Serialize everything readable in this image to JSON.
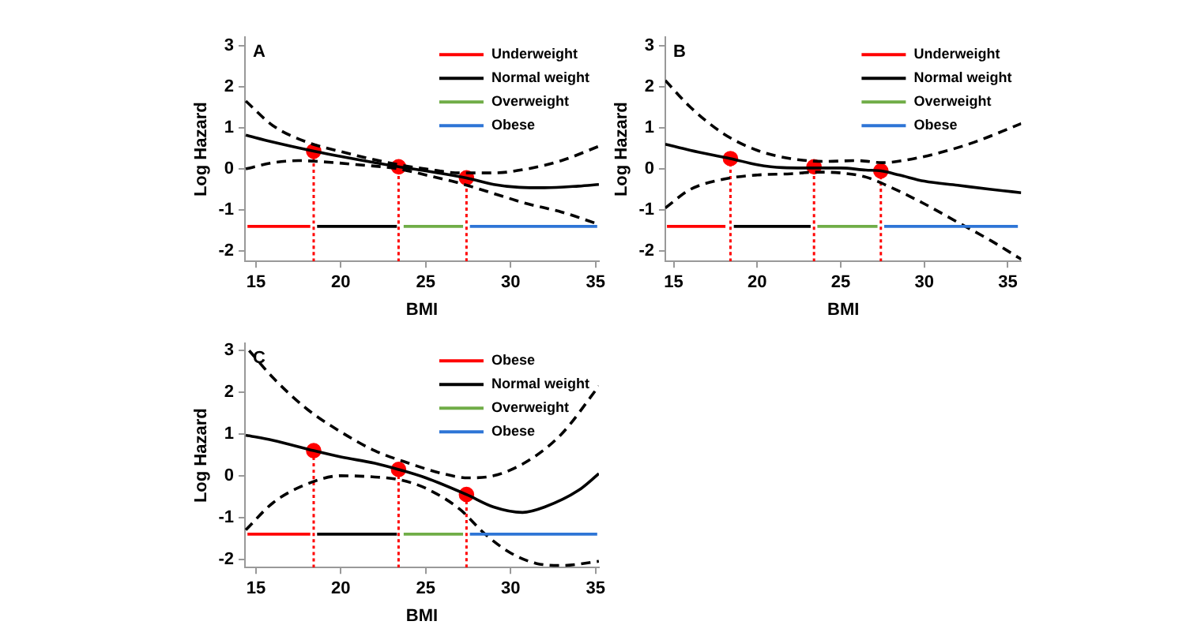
{
  "chart_data": [
    {
      "type": "line",
      "annotations": [
        "A"
      ],
      "xlabel": "BMI",
      "ylabel": "Log Hazard",
      "xlim": [
        14.35,
        35.2
      ],
      "ylim": [
        -2.25,
        3.2
      ],
      "xticks": [
        15,
        20,
        25,
        30,
        35
      ],
      "yticks": [
        -2,
        -1,
        0,
        1,
        2,
        3
      ],
      "grid": false,
      "legend": "top right",
      "series": [
        {
          "name": "Underweight",
          "color": "#ff0000",
          "x": [
            14.5,
            18.2
          ],
          "values": [
            -1.4,
            -1.4
          ]
        },
        {
          "name": "Normal weight",
          "color": "#000000",
          "x": [
            18.6,
            23.3
          ],
          "values": [
            -1.4,
            -1.4
          ]
        },
        {
          "name": "Overweight",
          "color": "#70ad47",
          "x": [
            23.7,
            27.2
          ],
          "values": [
            -1.4,
            -1.4
          ]
        },
        {
          "name": "Obese",
          "color": "#2e75d6",
          "x": [
            27.6,
            35.1
          ],
          "values": [
            -1.4,
            -1.4
          ]
        },
        {
          "color": "#000000",
          "x": [
            14.4,
            16,
            18.4,
            20,
            23.4,
            25,
            27.4,
            29,
            30.5,
            32,
            34,
            35.2
          ],
          "values": [
            0.82,
            0.65,
            0.43,
            0.3,
            0.05,
            -0.05,
            -0.22,
            -0.38,
            -0.45,
            -0.46,
            -0.42,
            -0.38
          ]
        },
        {
          "color": "#000000",
          "line_style": "dashed",
          "x": [
            14.4,
            16,
            18,
            20,
            23.4,
            25,
            27,
            29,
            31,
            33,
            35.2
          ],
          "values": [
            1.65,
            1.05,
            0.65,
            0.42,
            0.1,
            0.0,
            -0.1,
            -0.1,
            0.0,
            0.2,
            0.55
          ]
        },
        {
          "color": "#000000",
          "line_style": "dashed",
          "x": [
            14.4,
            16,
            17.5,
            19,
            21,
            23.4,
            25,
            27,
            29,
            31,
            33,
            35.2
          ],
          "values": [
            0.0,
            0.15,
            0.2,
            0.17,
            0.1,
            0.0,
            -0.15,
            -0.35,
            -0.6,
            -0.85,
            -1.05,
            -1.35
          ]
        },
        {
          "color": "#ff0000",
          "line_style": "dotted",
          "x": [
            18.4,
            18.4
          ],
          "values": [
            -2.25,
            0.43
          ]
        },
        {
          "color": "#ff0000",
          "line_style": "dotted",
          "x": [
            23.4,
            23.4
          ],
          "values": [
            -2.25,
            0.05
          ]
        },
        {
          "color": "#ff0000",
          "line_style": "dotted",
          "x": [
            27.4,
            27.4
          ],
          "values": [
            -2.25,
            -0.22
          ]
        },
        {
          "type": "scatter",
          "color": "#ff0000",
          "marker": "circle",
          "x": [
            18.4,
            23.4,
            27.4
          ],
          "values": [
            0.43,
            0.05,
            -0.22
          ]
        }
      ]
    },
    {
      "type": "line",
      "annotations": [
        "B"
      ],
      "xlabel": "BMI",
      "ylabel": "Log Hazard",
      "xlim": [
        14.5,
        35.8
      ],
      "ylim": [
        -2.25,
        3.2
      ],
      "xticks": [
        15,
        20,
        25,
        30,
        35
      ],
      "yticks": [
        -2,
        -1,
        0,
        1,
        2,
        3
      ],
      "grid": false,
      "legend": "top right",
      "series": [
        {
          "name": "Underweight",
          "color": "#ff0000",
          "x": [
            14.6,
            18.1
          ],
          "values": [
            -1.4,
            -1.4
          ]
        },
        {
          "name": "Normal weight",
          "color": "#000000",
          "x": [
            18.6,
            23.2
          ],
          "values": [
            -1.4,
            -1.4
          ]
        },
        {
          "name": "Overweight",
          "color": "#70ad47",
          "x": [
            23.6,
            27.2
          ],
          "values": [
            -1.4,
            -1.4
          ]
        },
        {
          "name": "Obese",
          "color": "#2e75d6",
          "x": [
            27.6,
            35.6
          ],
          "values": [
            -1.4,
            -1.4
          ]
        },
        {
          "color": "#000000",
          "x": [
            14.5,
            16,
            18.4,
            20,
            21.5,
            23.4,
            25,
            26.5,
            27.4,
            28.5,
            30,
            32,
            34,
            35.8
          ],
          "values": [
            0.6,
            0.45,
            0.25,
            0.1,
            0.03,
            0.02,
            0.02,
            -0.03,
            -0.05,
            -0.15,
            -0.3,
            -0.4,
            -0.5,
            -0.58
          ]
        },
        {
          "color": "#000000",
          "line_style": "dashed",
          "x": [
            14.5,
            16,
            18,
            20,
            22,
            24,
            26,
            27.5,
            29,
            31,
            33,
            35.8
          ],
          "values": [
            2.15,
            1.5,
            0.85,
            0.45,
            0.25,
            0.18,
            0.2,
            0.15,
            0.22,
            0.4,
            0.65,
            1.1
          ]
        },
        {
          "color": "#000000",
          "line_style": "dashed",
          "x": [
            14.5,
            16,
            18,
            20,
            22,
            23.5,
            25,
            26.5,
            28,
            30,
            32,
            34,
            35.8
          ],
          "values": [
            -0.95,
            -0.5,
            -0.25,
            -0.15,
            -0.12,
            -0.08,
            -0.1,
            -0.2,
            -0.45,
            -0.85,
            -1.3,
            -1.75,
            -2.2
          ]
        },
        {
          "color": "#ff0000",
          "line_style": "dotted",
          "x": [
            18.4,
            18.4
          ],
          "values": [
            -2.25,
            0.25
          ]
        },
        {
          "color": "#ff0000",
          "line_style": "dotted",
          "x": [
            23.4,
            23.4
          ],
          "values": [
            -2.25,
            0.05
          ]
        },
        {
          "color": "#ff0000",
          "line_style": "dotted",
          "x": [
            27.4,
            27.4
          ],
          "values": [
            -2.25,
            -0.05
          ]
        },
        {
          "type": "scatter",
          "color": "#ff0000",
          "marker": "circle",
          "x": [
            18.4,
            23.4,
            27.4
          ],
          "values": [
            0.25,
            0.05,
            -0.05
          ]
        }
      ]
    },
    {
      "type": "line",
      "annotations": [
        "C"
      ],
      "xlabel": "BMI",
      "ylabel": "Log Hazard",
      "xlim": [
        14.35,
        35.2
      ],
      "ylim": [
        -2.2,
        3.17
      ],
      "xticks": [
        15,
        20,
        25,
        30,
        35
      ],
      "yticks": [
        -2,
        -1,
        0,
        1,
        2,
        3
      ],
      "grid": false,
      "legend": "top right",
      "series": [
        {
          "name": "Obese",
          "color": "#ff0000",
          "x": [
            14.5,
            18.2
          ],
          "values": [
            -1.4,
            -1.4
          ]
        },
        {
          "name": "Normal weight",
          "color": "#000000",
          "x": [
            18.6,
            23.3
          ],
          "values": [
            -1.4,
            -1.4
          ]
        },
        {
          "name": "Overweight",
          "color": "#70ad47",
          "x": [
            23.7,
            27.2
          ],
          "values": [
            -1.4,
            -1.4
          ]
        },
        {
          "name": "Obese",
          "color": "#2e75d6",
          "x": [
            27.6,
            35.1
          ],
          "values": [
            -1.4,
            -1.4
          ]
        },
        {
          "color": "#000000",
          "x": [
            14.4,
            16,
            18.4,
            20,
            22,
            23.4,
            25,
            27.4,
            29,
            30.7,
            32,
            34,
            35.2
          ],
          "values": [
            0.97,
            0.85,
            0.6,
            0.45,
            0.3,
            0.15,
            -0.05,
            -0.45,
            -0.75,
            -0.88,
            -0.75,
            -0.35,
            0.05
          ]
        },
        {
          "color": "#000000",
          "line_style": "dashed",
          "x": [
            14.6,
            16,
            18,
            20,
            22,
            24,
            26,
            27.5,
            29,
            31,
            33,
            35.2
          ],
          "values": [
            3.0,
            2.35,
            1.6,
            1.05,
            0.6,
            0.3,
            0.05,
            -0.05,
            0.0,
            0.35,
            1.0,
            2.15
          ]
        },
        {
          "color": "#000000",
          "line_style": "dashed",
          "x": [
            14.4,
            16,
            18,
            20,
            22,
            23.5,
            25,
            27,
            28.5,
            30,
            31.5,
            33,
            35.2
          ],
          "values": [
            -1.3,
            -0.65,
            -0.2,
            0.0,
            -0.03,
            -0.1,
            -0.3,
            -0.8,
            -1.4,
            -1.85,
            -2.1,
            -2.15,
            -2.05
          ]
        },
        {
          "color": "#ff0000",
          "line_style": "dotted",
          "x": [
            18.4,
            18.4
          ],
          "values": [
            -2.2,
            0.6
          ]
        },
        {
          "color": "#ff0000",
          "line_style": "dotted",
          "x": [
            23.4,
            23.4
          ],
          "values": [
            -2.2,
            0.15
          ]
        },
        {
          "color": "#ff0000",
          "line_style": "dotted",
          "x": [
            27.4,
            27.4
          ],
          "values": [
            -2.2,
            -0.45
          ]
        },
        {
          "type": "scatter",
          "color": "#ff0000",
          "marker": "circle",
          "x": [
            18.4,
            23.4,
            27.4
          ],
          "values": [
            0.6,
            0.15,
            -0.45
          ]
        }
      ]
    }
  ]
}
